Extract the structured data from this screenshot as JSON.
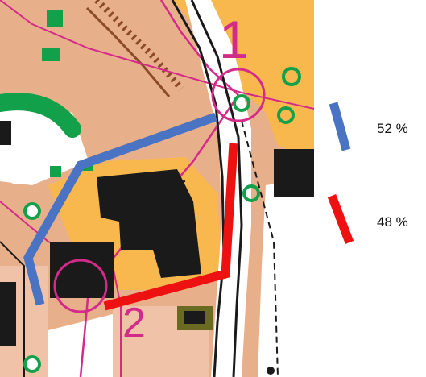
{
  "map": {
    "control_labels": [
      "1",
      "2"
    ],
    "colors": {
      "open_land": "#f8b84e",
      "rough": "#e8b08a",
      "paved": "#f0c2a8",
      "building": "#1a1a1a",
      "forest_green": "#13a04a",
      "course_magenta": "#d42a8a",
      "path_black": "#1a1a1a",
      "olive": "#6b6a22"
    },
    "routes": [
      {
        "id": "blue-route",
        "color": "#4a73c4",
        "percent_label": "52 %"
      },
      {
        "id": "red-route",
        "color": "#ee1111",
        "percent_label": "48 %"
      }
    ]
  }
}
